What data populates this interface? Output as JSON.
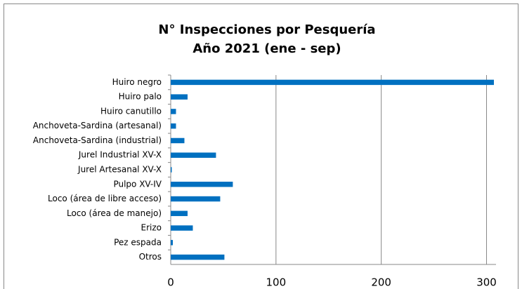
{
  "chart_data": {
    "type": "bar",
    "orientation": "horizontal",
    "title": "N° Inspecciones por Pesquería",
    "subtitle": "Año 2021 (ene - sep)",
    "categories": [
      "Huiro negro",
      "Huiro palo",
      "Huiro canutillo",
      "Anchoveta-Sardina (artesanal)",
      "Anchoveta-Sardina (industrial)",
      "Jurel Industrial XV-X",
      "Jurel Artesanal XV-X",
      "Pulpo XV-IV",
      "Loco (área de libre acceso)",
      "Loco (área de manejo)",
      "Erizo",
      "Pez espada",
      "Otros"
    ],
    "values": [
      307,
      16,
      5,
      5,
      13,
      43,
      1,
      59,
      47,
      16,
      21,
      2,
      51
    ],
    "color": "#0070c0",
    "xlim": [
      0,
      309
    ],
    "xticks": [
      0,
      100,
      200,
      300
    ],
    "grid": true
  }
}
